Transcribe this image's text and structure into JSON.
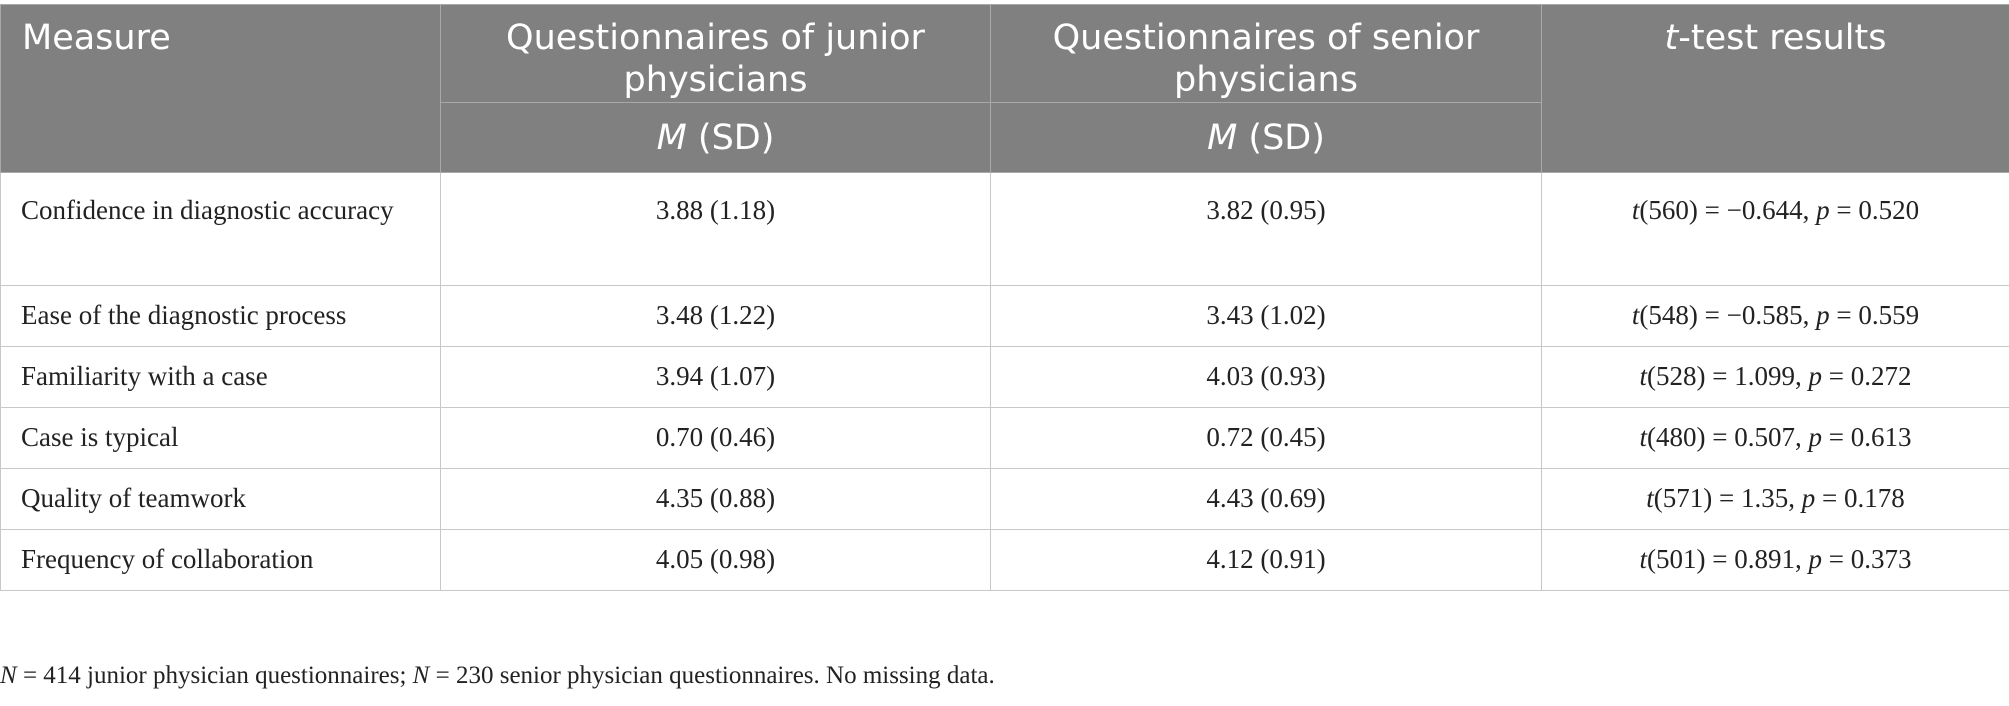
{
  "header": {
    "measure": "Measure",
    "junior": "Questionnaires of junior physicians",
    "senior": "Questionnaires of senior physicians",
    "ttest_italic": "t",
    "ttest_rest": "-test results",
    "stat_m": "M",
    "stat_sd": " (SD)"
  },
  "rows": [
    {
      "measure": "Confidence in diagnostic accuracy",
      "junior": "3.88 (1.18)",
      "senior": "3.82 (0.95)",
      "t_df": "(560) = −0.644, ",
      "p_val": " = 0.520"
    },
    {
      "measure": "Ease of the diagnostic process",
      "junior": "3.48 (1.22)",
      "senior": "3.43 (1.02)",
      "t_df": "(548) = −0.585, ",
      "p_val": " = 0.559"
    },
    {
      "measure": "Familiarity with a case",
      "junior": "3.94 (1.07)",
      "senior": "4.03 (0.93)",
      "t_df": "(528) = 1.099, ",
      "p_val": " = 0.272"
    },
    {
      "measure": "Case is typical",
      "junior": "0.70 (0.46)",
      "senior": "0.72 (0.45)",
      "t_df": "(480) = 0.507, ",
      "p_val": " = 0.613"
    },
    {
      "measure": "Quality of teamwork",
      "junior": "4.35 (0.88)",
      "senior": "4.43 (0.69)",
      "t_df": "(571) = 1.35, ",
      "p_val": " = 0.178"
    },
    {
      "measure": "Frequency of collaboration",
      "junior": "4.05 (0.98)",
      "senior": "4.12 (0.91)",
      "t_df": "(501) = 0.891, ",
      "p_val": " = 0.373"
    }
  ],
  "t_symbol": "t",
  "p_symbol": "p",
  "note": {
    "n_symbol": "N",
    "part1": " = 414 junior physician questionnaires; ",
    "part2": " = 230 senior physician questionnaires. No missing data."
  }
}
